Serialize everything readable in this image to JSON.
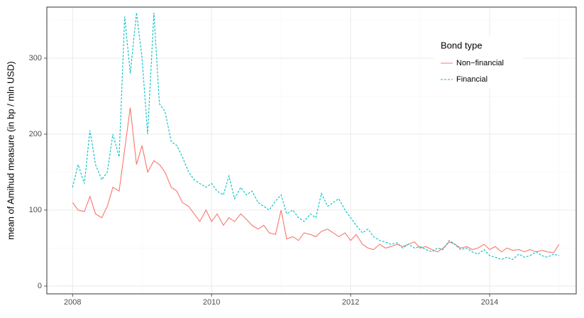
{
  "chart_data": {
    "type": "line",
    "ylabel": "mean of Amihud measure (in bp / mln USD)",
    "legend_title": "Bond type",
    "legend_position": "top right",
    "grid": true,
    "xlim": [
      2007.63,
      2015.245
    ],
    "ylim": [
      -10.3,
      367.3
    ],
    "xticks": [
      2008,
      2010,
      2012,
      2014
    ],
    "yticks": [
      0,
      100,
      200,
      300
    ],
    "xminor": [
      2009,
      2011,
      2013,
      2015
    ],
    "yminor": [
      50,
      150,
      250,
      350
    ],
    "x": [
      2008,
      2008.08,
      2008.17,
      2008.25,
      2008.33,
      2008.42,
      2008.5,
      2008.58,
      2008.67,
      2008.75,
      2008.83,
      2008.92,
      2009,
      2009.08,
      2009.17,
      2009.25,
      2009.33,
      2009.42,
      2009.5,
      2009.58,
      2009.67,
      2009.75,
      2009.83,
      2009.92,
      2010,
      2010.08,
      2010.17,
      2010.25,
      2010.33,
      2010.42,
      2010.5,
      2010.58,
      2010.67,
      2010.75,
      2010.83,
      2010.92,
      2011,
      2011.08,
      2011.17,
      2011.25,
      2011.33,
      2011.42,
      2011.5,
      2011.58,
      2011.67,
      2011.75,
      2011.83,
      2011.92,
      2012,
      2012.08,
      2012.17,
      2012.25,
      2012.33,
      2012.42,
      2012.5,
      2012.58,
      2012.67,
      2012.75,
      2012.83,
      2012.92,
      2013,
      2013.08,
      2013.17,
      2013.25,
      2013.33,
      2013.42,
      2013.5,
      2013.58,
      2013.67,
      2013.75,
      2013.83,
      2013.92,
      2014,
      2014.08,
      2014.17,
      2014.25,
      2014.33,
      2014.42,
      2014.5,
      2014.58,
      2014.67,
      2014.75,
      2014.83,
      2014.92,
      2015
    ],
    "series": [
      {
        "name": "Non−financial",
        "color": "#f8766d",
        "linestyle": "solid",
        "values": [
          110,
          100,
          98,
          118,
          95,
          90,
          105,
          130,
          125,
          180,
          235,
          160,
          185,
          150,
          165,
          160,
          150,
          130,
          125,
          110,
          105,
          95,
          85,
          100,
          85,
          95,
          80,
          90,
          85,
          95,
          88,
          80,
          75,
          80,
          70,
          68,
          100,
          62,
          65,
          60,
          70,
          68,
          65,
          72,
          75,
          70,
          65,
          70,
          60,
          68,
          55,
          50,
          48,
          55,
          50,
          52,
          55,
          52,
          55,
          58,
          50,
          52,
          48,
          45,
          50,
          58,
          55,
          50,
          52,
          48,
          50,
          55,
          48,
          52,
          45,
          50,
          47,
          48,
          45,
          48,
          45,
          47,
          45,
          44,
          55
        ]
      },
      {
        "name": "Financial",
        "color": "#00bfc4",
        "linestyle": "dashed",
        "values": [
          130,
          160,
          135,
          205,
          160,
          140,
          150,
          200,
          170,
          355,
          280,
          360,
          300,
          200,
          360,
          240,
          230,
          190,
          185,
          170,
          150,
          140,
          135,
          130,
          135,
          125,
          120,
          145,
          115,
          130,
          120,
          125,
          110,
          105,
          100,
          112,
          120,
          95,
          100,
          90,
          85,
          95,
          90,
          122,
          105,
          110,
          115,
          100,
          90,
          80,
          70,
          75,
          65,
          60,
          58,
          55,
          57,
          50,
          55,
          50,
          52,
          48,
          45,
          50,
          48,
          60,
          55,
          48,
          50,
          45,
          42,
          48,
          40,
          38,
          35,
          38,
          35,
          42,
          38,
          40,
          45,
          40,
          38,
          42,
          40
        ]
      }
    ]
  }
}
